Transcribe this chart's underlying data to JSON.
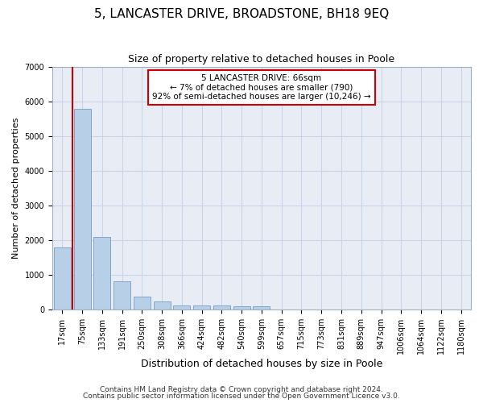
{
  "title": "5, LANCASTER DRIVE, BROADSTONE, BH18 9EQ",
  "subtitle": "Size of property relative to detached houses in Poole",
  "xlabel": "Distribution of detached houses by size in Poole",
  "ylabel": "Number of detached properties",
  "categories": [
    "17sqm",
    "75sqm",
    "133sqm",
    "191sqm",
    "250sqm",
    "308sqm",
    "366sqm",
    "424sqm",
    "482sqm",
    "540sqm",
    "599sqm",
    "657sqm",
    "715sqm",
    "773sqm",
    "831sqm",
    "889sqm",
    "947sqm",
    "1006sqm",
    "1064sqm",
    "1122sqm",
    "1180sqm"
  ],
  "values": [
    1780,
    5800,
    2080,
    800,
    360,
    220,
    120,
    110,
    110,
    90,
    90,
    0,
    0,
    0,
    0,
    0,
    0,
    0,
    0,
    0,
    0
  ],
  "bar_color": "#b8cfe8",
  "bar_edge_color": "#6090c0",
  "highlight_color": "#cc0000",
  "ylim": [
    0,
    7000
  ],
  "yticks": [
    0,
    1000,
    2000,
    3000,
    4000,
    5000,
    6000,
    7000
  ],
  "annotation_title": "5 LANCASTER DRIVE: 66sqm",
  "annotation_line1": "← 7% of detached houses are smaller (790)",
  "annotation_line2": "92% of semi-detached houses are larger (10,246) →",
  "footer1": "Contains HM Land Registry data © Crown copyright and database right 2024.",
  "footer2": "Contains public sector information licensed under the Open Government Licence v3.0.",
  "bg_color": "#ffffff",
  "plot_bg_color": "#e8edf5",
  "grid_color": "#c8d4e8",
  "title_fontsize": 11,
  "subtitle_fontsize": 9,
  "ylabel_fontsize": 8,
  "xlabel_fontsize": 9,
  "tick_fontsize": 7,
  "footer_fontsize": 6.5
}
